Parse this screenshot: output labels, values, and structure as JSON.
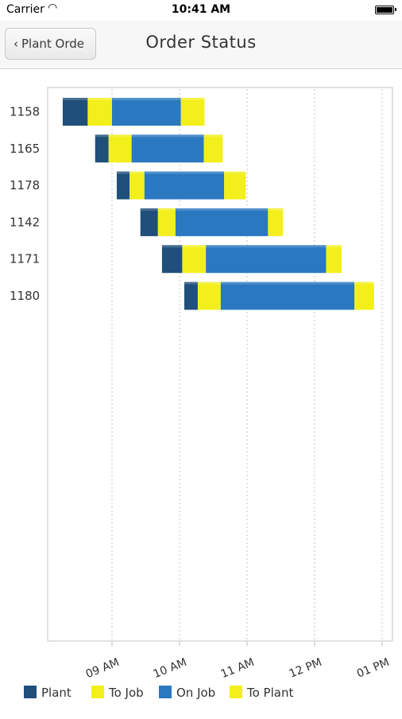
{
  "status_bar": {
    "carrier": "Carrier",
    "time": "10:41 AM"
  },
  "nav": {
    "back_label": "Plant Orde",
    "title": "Order Status"
  },
  "colors": {
    "plant": "#1f4f7a",
    "to_job": "#f2ef1b",
    "on_job": "#2a78c0",
    "to_plant": "#f2ef1b"
  },
  "chart_data": {
    "type": "bar",
    "orientation": "horizontal-stacked-gantt",
    "title": "",
    "xlabel": "",
    "ylabel": "",
    "x_ticks": [
      "09 AM",
      "10 AM",
      "11 AM",
      "12 PM",
      "01 PM"
    ],
    "xlim_hours": [
      8.0,
      13.0
    ],
    "grid": "vertical dotted",
    "legend_position": "bottom",
    "series": [
      {
        "name": "Plant",
        "color_key": "plant"
      },
      {
        "name": "To Job",
        "color_key": "to_job"
      },
      {
        "name": "On Job",
        "color_key": "on_job"
      },
      {
        "name": "To Plant",
        "color_key": "to_plant"
      }
    ],
    "orders": [
      {
        "id": "1158",
        "start": 8.27,
        "segments": [
          0.37,
          0.36,
          1.02,
          0.35
        ]
      },
      {
        "id": "1165",
        "start": 8.75,
        "segments": [
          0.2,
          0.34,
          1.07,
          0.28
        ]
      },
      {
        "id": "1178",
        "start": 9.07,
        "segments": [
          0.19,
          0.22,
          1.18,
          0.32
        ]
      },
      {
        "id": "1142",
        "start": 9.42,
        "segments": [
          0.26,
          0.26,
          1.37,
          0.22
        ]
      },
      {
        "id": "1171",
        "start": 9.74,
        "segments": [
          0.3,
          0.35,
          1.78,
          0.23
        ]
      },
      {
        "id": "1180",
        "start": 10.07,
        "segments": [
          0.2,
          0.34,
          1.98,
          0.29
        ]
      }
    ]
  }
}
